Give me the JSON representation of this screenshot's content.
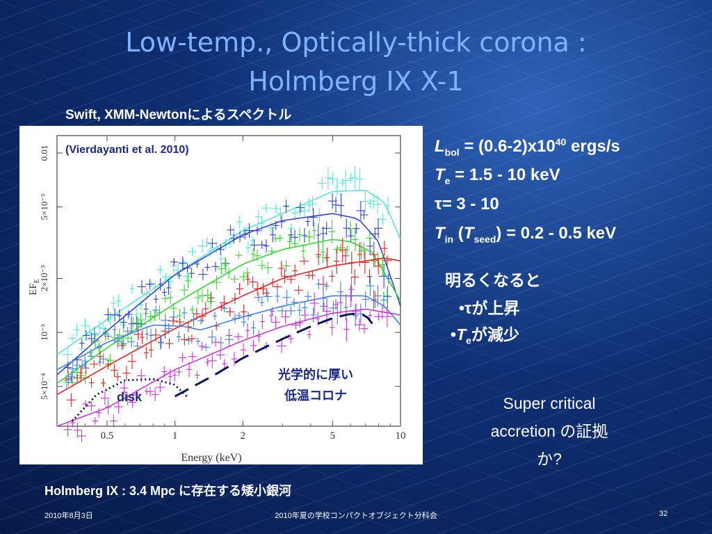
{
  "slide": {
    "title_line1": "Low-temp., Optically-thick corona :",
    "title_line2": "Holmberg IX X-1",
    "subtitle": "Swift, XMM-Newtonによるスペクトル",
    "bottom_note": "Holmberg IX : 3.4 Mpc に存在する矮小銀河",
    "footer_date": "2010年8月3日",
    "footer_center": "2010年夏の学校コンパクトオブジェクト分科会",
    "footer_page": "32"
  },
  "params": {
    "lbol_sym": "L",
    "lbol_sub": "bol",
    "lbol_text": " = (0.6-2)x10",
    "lbol_sup": "40",
    "lbol_unit": " ergs/s",
    "te_sym": "T",
    "te_sub": "e",
    "te_text": " = 1.5 - 10 keV",
    "tau_text": "τ= 3 - 10",
    "tin_sym": "T",
    "tin_sub": "in",
    "tin_mid": " (",
    "tseed_sym": "T",
    "tseed_sub": "seed",
    "tin_text": ") = 0.2 - 0.5 keV"
  },
  "trend": {
    "line1": "明るくなると",
    "line2": "•τが上昇",
    "line3_bullet": "•",
    "line3_sym": "T",
    "line3_sub": "e",
    "line3_text": "が減少"
  },
  "note": {
    "line1": "Super critical",
    "line2": "accretion の証拠",
    "line3": "か?"
  },
  "chart_data": {
    "type": "scatter",
    "xscale": "log",
    "yscale": "log",
    "xlim": [
      0.3,
      10
    ],
    "ylim": [
      0.0003,
      0.0125
    ],
    "xlabel": "Energy (keV)",
    "ylabel": "EF_E",
    "x_ticks": [
      0.5,
      1,
      2,
      5,
      10
    ],
    "x_tick_labels": [
      "0.5",
      "1",
      "2",
      "5",
      "10"
    ],
    "y_ticks": [
      0.0005,
      0.001,
      0.002,
      0.005,
      0.01
    ],
    "y_tick_labels": [
      "5×10⁻⁴",
      "10⁻³",
      "2×10⁻³",
      "5×10⁻³",
      "0.01"
    ],
    "annotations": {
      "citation": "(Vierdayanti et al. 2010)",
      "disk": "disk",
      "corona_line1": "光学的に厚い",
      "corona_line2": "低温コロナ"
    },
    "series": [
      {
        "color": "#55e8d8",
        "x": [
          0.3,
          0.5,
          1,
          2,
          3,
          5,
          7,
          8.5,
          10
        ],
        "y": [
          0.00075,
          0.00118,
          0.0021,
          0.0037,
          0.0046,
          0.0061,
          0.0062,
          0.0053,
          0.0033
        ]
      },
      {
        "color": "#3340d8",
        "x": [
          0.3,
          0.5,
          1,
          2,
          3,
          5,
          6.5,
          8,
          10
        ],
        "y": [
          0.00058,
          0.00102,
          0.0021,
          0.0035,
          0.0042,
          0.0046,
          0.0043,
          0.0032,
          0.0014
        ]
      },
      {
        "color": "#33d733",
        "x": [
          0.3,
          0.5,
          1,
          2,
          3,
          5,
          6,
          7.5,
          10
        ],
        "y": [
          0.00052,
          0.00082,
          0.00145,
          0.0024,
          0.0029,
          0.0033,
          0.0032,
          0.0028,
          0.0015
        ]
      },
      {
        "color": "#e82020",
        "x": [
          0.3,
          0.5,
          1,
          2,
          3,
          5,
          7,
          8.5,
          10
        ],
        "y": [
          0.00045,
          0.00065,
          0.00105,
          0.0016,
          0.002,
          0.00235,
          0.0025,
          0.0026,
          0.0025
        ]
      },
      {
        "color": "#3d7fe8",
        "x": [
          0.3,
          0.5,
          0.8,
          1.1,
          1.3,
          1.6,
          2,
          3,
          5,
          7,
          8.5,
          10
        ],
        "y": [
          0.00062,
          0.00088,
          0.0011,
          0.00108,
          0.00103,
          0.00112,
          0.00122,
          0.0014,
          0.0016,
          0.0016,
          0.0014,
          0.0011
        ]
      },
      {
        "color": "#cc33dd",
        "x": [
          0.3,
          0.5,
          1,
          2,
          3,
          5,
          7,
          10
        ],
        "y": [
          0.0003,
          0.00038,
          0.00062,
          0.0009,
          0.00108,
          0.00128,
          0.00135,
          0.00125
        ]
      }
    ],
    "disk_curve": {
      "x": [
        0.35,
        0.45,
        0.6,
        0.8,
        1.0,
        1.15
      ],
      "y": [
        0.00032,
        0.00045,
        0.00054,
        0.00055,
        0.00051,
        0.00043
      ]
    },
    "corona_curve": {
      "x": [
        1.0,
        1.5,
        2,
        3,
        4,
        5,
        6,
        7,
        7.5
      ],
      "y": [
        0.00044,
        0.00058,
        0.00072,
        0.00092,
        0.00108,
        0.0012,
        0.00127,
        0.00125,
        0.00112
      ]
    }
  }
}
